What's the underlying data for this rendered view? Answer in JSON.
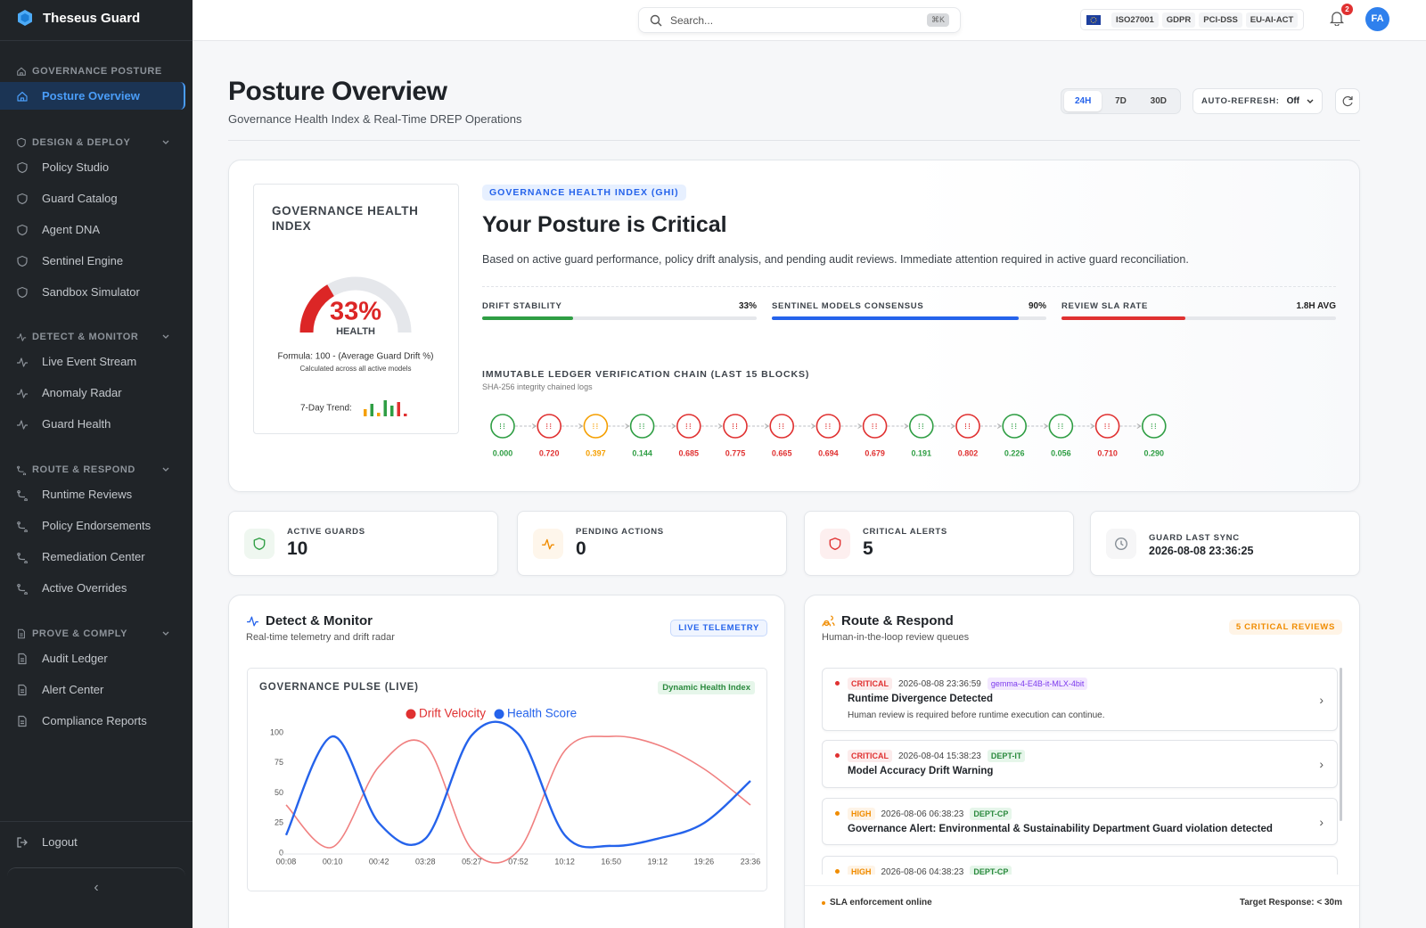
{
  "sidebar": {
    "brand": "Theseus Guard",
    "sections": [
      {
        "title": "GOVERNANCE POSTURE",
        "items": [
          "Posture Overview"
        ]
      },
      {
        "title": "DESIGN & DEPLOY",
        "items": [
          "Policy Studio",
          "Guard Catalog",
          "Agent DNA",
          "Sentinel Engine",
          "Sandbox Simulator"
        ]
      },
      {
        "title": "DETECT & MONITOR",
        "items": [
          "Live Event Stream",
          "Anomaly Radar",
          "Guard Health"
        ]
      },
      {
        "title": "ROUTE & RESPOND",
        "items": [
          "Runtime Reviews",
          "Policy Endorsements",
          "Remediation Center",
          "Active Overrides"
        ]
      },
      {
        "title": "PROVE & COMPLY",
        "items": [
          "Audit Ledger",
          "Alert Center",
          "Compliance Reports"
        ]
      }
    ],
    "logout": "Logout"
  },
  "topbar": {
    "search": "Search...",
    "shortcut": "⌘K",
    "badges": [
      "ISO27001",
      "GDPR",
      "PCI-DSS",
      "EU-AI-ACT"
    ],
    "notifications": 2,
    "avatar": "FA"
  },
  "header": {
    "title": "Posture Overview",
    "subtitle": "Governance Health Index & Real-Time DREP Operations",
    "ranges": [
      "24H",
      "7D",
      "30D"
    ],
    "auto_refresh_label": "AUTO-REFRESH:",
    "auto_refresh_value": "Off"
  },
  "ghi": {
    "card_title": "GOVERNANCE HEALTH INDEX",
    "gauge": {
      "type": "gauge",
      "value": 33,
      "value_label": "33%",
      "label": "HEALTH",
      "max": 100,
      "color": "#dc2626"
    },
    "formula": "Formula: 100 - (Average Guard Drift %)",
    "formula_note": "Calculated across all active models",
    "trend_label": "7-Day Trend:",
    "trend": {
      "type": "bar",
      "values": [
        8,
        14,
        4,
        18,
        12,
        16,
        3
      ],
      "ylim": [
        0,
        20
      ],
      "colors": [
        "#f59f00",
        "#2f9e44",
        "#f59f00",
        "#2f9e44",
        "#2f9e44",
        "#e03131",
        "#e03131"
      ]
    },
    "tag": "GOVERNANCE HEALTH INDEX (GHI)",
    "headline": "Your Posture is Critical",
    "description": "Based on active guard performance, policy drift analysis, and pending audit reviews. Immediate attention required in active guard reconciliation.",
    "metrics": [
      {
        "label": "DRIFT STABILITY",
        "value_label": "33%",
        "fill": 33,
        "color": "#2f9e44"
      },
      {
        "label": "SENTINEL MODELS CONSENSUS",
        "value_label": "90%",
        "fill": 90,
        "color": "#2563eb"
      },
      {
        "label": "REVIEW SLA RATE",
        "value_label": "1.8H AVG",
        "fill": 45,
        "color": "#e03131"
      }
    ],
    "ledger": {
      "title": "IMMUTABLE LEDGER VERIFICATION CHAIN (LAST 15 BLOCKS)",
      "subtitle": "SHA-256 integrity chained logs",
      "values": [
        0,
        0.72,
        0.397,
        0.144,
        0.685,
        0.775,
        0.665,
        0.694,
        0.679,
        0.191,
        0.802,
        0.226,
        0.056,
        0.71,
        0.29
      ],
      "value_labels": [
        "0.000",
        "0.720",
        "0.397",
        "0.144",
        "0.685",
        "0.775",
        "0.665",
        "0.694",
        "0.679",
        "0.191",
        "0.802",
        "0.226",
        "0.056",
        "0.710",
        "0.290"
      ],
      "colors": [
        "#2f9e44",
        "#e03131",
        "#f59f00",
        "#2f9e44",
        "#e03131",
        "#e03131",
        "#e03131",
        "#e03131",
        "#e03131",
        "#2f9e44",
        "#e03131",
        "#2f9e44",
        "#2f9e44",
        "#e03131",
        "#2f9e44"
      ]
    }
  },
  "stats": [
    {
      "label": "ACTIVE GUARDS",
      "value": 10,
      "color": "#2f9e44"
    },
    {
      "label": "PENDING ACTIONS",
      "value": 0,
      "color": "#f08c00"
    },
    {
      "label": "CRITICAL ALERTS",
      "value": 5,
      "color": "#e03131"
    },
    {
      "label": "GUARD LAST SYNC",
      "value": "2026-08-08 23:36:25",
      "color": "#868e96"
    }
  ],
  "detect": {
    "title": "Detect & Monitor",
    "subtitle": "Real-time telemetry and drift radar",
    "badge": "LIVE TELEMETRY"
  },
  "chart_data": {
    "type": "line",
    "title": "GOVERNANCE PULSE (LIVE)",
    "tag": "Dynamic Health Index",
    "categories": [
      "00:08",
      "00:10",
      "00:42",
      "03:28",
      "05:27",
      "07:52",
      "10:12",
      "16:50",
      "19:12",
      "19:26",
      "23:36"
    ],
    "series": [
      {
        "name": "Drift Velocity",
        "color": "#f08080",
        "values": [
          40,
          5,
          72,
          90,
          3,
          2,
          85,
          97,
          90,
          70,
          40
        ]
      },
      {
        "name": "Health Score",
        "color": "#2563eb",
        "values": [
          15,
          97,
          25,
          12,
          98,
          99,
          15,
          6,
          12,
          25,
          60
        ]
      }
    ],
    "ylim": [
      0,
      100
    ],
    "yticks": [
      0,
      25,
      50,
      75,
      100
    ],
    "legend": "top",
    "smooth": true
  },
  "route": {
    "title": "Route & Respond",
    "subtitle": "Human-in-the-loop review queues",
    "badge": "5 CRITICAL REVIEWS",
    "reviews": [
      {
        "severity": "CRITICAL",
        "time": "2026-08-08 23:36:59",
        "tag": "gemma-4-E4B-it-MLX-4bit",
        "title": "Runtime Divergence Detected",
        "detail": "Human review is required before runtime execution can continue."
      },
      {
        "severity": "CRITICAL",
        "time": "2026-08-04 15:38:23",
        "tag": "DEPT-IT",
        "title": "Model Accuracy Drift Warning"
      },
      {
        "severity": "HIGH",
        "time": "2026-08-06 06:38:23",
        "tag": "DEPT-CP",
        "title": "Governance Alert: Environmental & Sustainability Department Guard violation detected"
      },
      {
        "severity": "HIGH",
        "time": "2026-08-06 04:38:23",
        "tag": "DEPT-CP"
      }
    ],
    "footer_left": "SLA enforcement online",
    "footer_right": "Target Response: < 30m"
  }
}
